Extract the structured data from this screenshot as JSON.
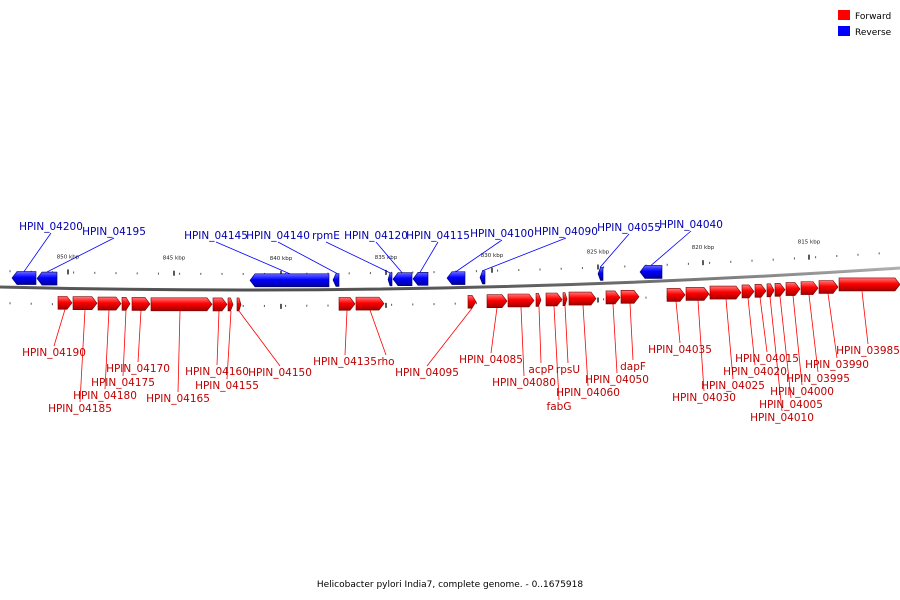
{
  "legend": {
    "items": [
      {
        "label": "Forward",
        "color": "#ff0000"
      },
      {
        "label": "Reverse",
        "color": "#0000ff"
      }
    ]
  },
  "caption": "Helicobacter pylori India7, complete genome. - 0..1675918",
  "colors": {
    "forward": "#ff0000",
    "reverse": "#0000ff",
    "backbone": "#808080"
  },
  "scale": {
    "ticks": [
      {
        "label": "850 kbp"
      },
      {
        "label": "845 kbp"
      },
      {
        "label": "840 kbp"
      },
      {
        "label": "835 kbp"
      },
      {
        "label": "830 kbp"
      },
      {
        "label": "825 kbp"
      },
      {
        "label": "820 kbp"
      },
      {
        "label": "815 kbp"
      }
    ]
  },
  "reverse_genes": [
    {
      "label": "HPIN_04200"
    },
    {
      "label": "HPIN_04195"
    },
    {
      "label": "HPIN_04145"
    },
    {
      "label": "HPIN_04140"
    },
    {
      "label": "rpmE"
    },
    {
      "label": "HPIN_04120"
    },
    {
      "label": "HPIN_04115"
    },
    {
      "label": "HPIN_04100"
    },
    {
      "label": "HPIN_04090"
    },
    {
      "label": "HPIN_04055"
    },
    {
      "label": "HPIN_04040"
    }
  ],
  "forward_genes": [
    {
      "label": "HPIN_04190"
    },
    {
      "label": "HPIN_04185"
    },
    {
      "label": "HPIN_04180"
    },
    {
      "label": "HPIN_04175"
    },
    {
      "label": "HPIN_04170"
    },
    {
      "label": "HPIN_04165"
    },
    {
      "label": "HPIN_04160"
    },
    {
      "label": "HPIN_04155"
    },
    {
      "label": "HPIN_04150"
    },
    {
      "label": "HPIN_04135"
    },
    {
      "label": "rho"
    },
    {
      "label": "HPIN_04095"
    },
    {
      "label": "HPIN_04085"
    },
    {
      "label": "HPIN_04080"
    },
    {
      "label": "acpP"
    },
    {
      "label": "fabG"
    },
    {
      "label": "rpsU"
    },
    {
      "label": "HPIN_04060"
    },
    {
      "label": "HPIN_04050"
    },
    {
      "label": "dapF"
    },
    {
      "label": "HPIN_04035"
    },
    {
      "label": "HPIN_04030"
    },
    {
      "label": "HPIN_04025"
    },
    {
      "label": "HPIN_04020"
    },
    {
      "label": "HPIN_04015"
    },
    {
      "label": "HPIN_04010"
    },
    {
      "label": "HPIN_04005"
    },
    {
      "label": "HPIN_04000"
    },
    {
      "label": "HPIN_03995"
    },
    {
      "label": "HPIN_03990"
    },
    {
      "label": "HPIN_03985"
    }
  ]
}
